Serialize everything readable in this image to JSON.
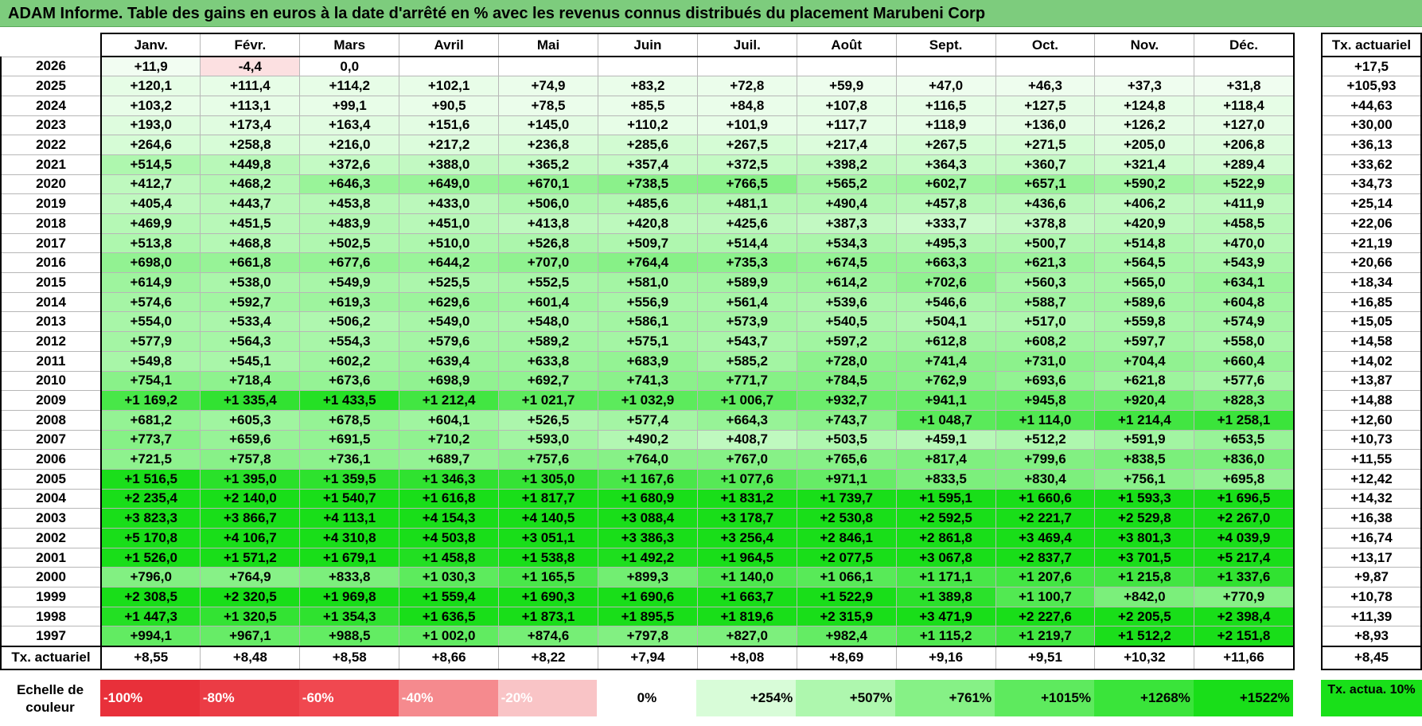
{
  "title": "ADAM Informe. Table des gains en euros à la date d'arrêté en % avec les revenus connus distribués du placement Marubeni Corp",
  "months": [
    "Janv.",
    "Févr.",
    "Mars",
    "Avril",
    "Mai",
    "Juin",
    "Juil.",
    "Août",
    "Sept.",
    "Oct.",
    "Nov.",
    "Déc."
  ],
  "side_header": "Tx. actuariel",
  "rows": [
    {
      "year": "2026",
      "values": [
        "+11,9",
        "-4,4",
        "0,0",
        "",
        "",
        "",
        "",
        "",
        "",
        "",
        "",
        ""
      ],
      "rate": "+17,5"
    },
    {
      "year": "2025",
      "values": [
        "+120,1",
        "+111,4",
        "+114,2",
        "+102,1",
        "+74,9",
        "+83,2",
        "+72,8",
        "+59,9",
        "+47,0",
        "+46,3",
        "+37,3",
        "+31,8"
      ],
      "rate": "+105,93"
    },
    {
      "year": "2024",
      "values": [
        "+103,2",
        "+113,1",
        "+99,1",
        "+90,5",
        "+78,5",
        "+85,5",
        "+84,8",
        "+107,8",
        "+116,5",
        "+127,5",
        "+124,8",
        "+118,4"
      ],
      "rate": "+44,63"
    },
    {
      "year": "2023",
      "values": [
        "+193,0",
        "+173,4",
        "+163,4",
        "+151,6",
        "+145,0",
        "+110,2",
        "+101,9",
        "+117,7",
        "+118,9",
        "+136,0",
        "+126,2",
        "+127,0"
      ],
      "rate": "+30,00"
    },
    {
      "year": "2022",
      "values": [
        "+264,6",
        "+258,8",
        "+216,0",
        "+217,2",
        "+236,8",
        "+285,6",
        "+267,5",
        "+217,4",
        "+267,5",
        "+271,5",
        "+205,0",
        "+206,8"
      ],
      "rate": "+36,13"
    },
    {
      "year": "2021",
      "values": [
        "+514,5",
        "+449,8",
        "+372,6",
        "+388,0",
        "+365,2",
        "+357,4",
        "+372,5",
        "+398,2",
        "+364,3",
        "+360,7",
        "+321,4",
        "+289,4"
      ],
      "rate": "+33,62"
    },
    {
      "year": "2020",
      "values": [
        "+412,7",
        "+468,2",
        "+646,3",
        "+649,0",
        "+670,1",
        "+738,5",
        "+766,5",
        "+565,2",
        "+602,7",
        "+657,1",
        "+590,2",
        "+522,9"
      ],
      "rate": "+34,73"
    },
    {
      "year": "2019",
      "values": [
        "+405,4",
        "+443,7",
        "+453,8",
        "+433,0",
        "+506,0",
        "+485,6",
        "+481,1",
        "+490,4",
        "+457,8",
        "+436,6",
        "+406,2",
        "+411,9"
      ],
      "rate": "+25,14"
    },
    {
      "year": "2018",
      "values": [
        "+469,9",
        "+451,5",
        "+483,9",
        "+451,0",
        "+413,8",
        "+420,8",
        "+425,6",
        "+387,3",
        "+333,7",
        "+378,8",
        "+420,9",
        "+458,5"
      ],
      "rate": "+22,06"
    },
    {
      "year": "2017",
      "values": [
        "+513,8",
        "+468,8",
        "+502,5",
        "+510,0",
        "+526,8",
        "+509,7",
        "+514,4",
        "+534,3",
        "+495,3",
        "+500,7",
        "+514,8",
        "+470,0"
      ],
      "rate": "+21,19"
    },
    {
      "year": "2016",
      "values": [
        "+698,0",
        "+661,8",
        "+677,6",
        "+644,2",
        "+707,0",
        "+764,4",
        "+735,3",
        "+674,5",
        "+663,3",
        "+621,3",
        "+564,5",
        "+543,9"
      ],
      "rate": "+20,66"
    },
    {
      "year": "2015",
      "values": [
        "+614,9",
        "+538,0",
        "+549,9",
        "+525,5",
        "+552,5",
        "+581,0",
        "+589,9",
        "+614,2",
        "+702,6",
        "+560,3",
        "+565,0",
        "+634,1"
      ],
      "rate": "+18,34"
    },
    {
      "year": "2014",
      "values": [
        "+574,6",
        "+592,7",
        "+619,3",
        "+629,6",
        "+601,4",
        "+556,9",
        "+561,4",
        "+539,6",
        "+546,6",
        "+588,7",
        "+589,6",
        "+604,8"
      ],
      "rate": "+16,85"
    },
    {
      "year": "2013",
      "values": [
        "+554,0",
        "+533,4",
        "+506,2",
        "+549,0",
        "+548,0",
        "+586,1",
        "+573,9",
        "+540,5",
        "+504,1",
        "+517,0",
        "+559,8",
        "+574,9"
      ],
      "rate": "+15,05"
    },
    {
      "year": "2012",
      "values": [
        "+577,9",
        "+564,3",
        "+554,3",
        "+579,6",
        "+589,2",
        "+575,1",
        "+543,7",
        "+597,2",
        "+612,8",
        "+608,2",
        "+597,7",
        "+558,0"
      ],
      "rate": "+14,58"
    },
    {
      "year": "2011",
      "values": [
        "+549,8",
        "+545,1",
        "+602,2",
        "+639,4",
        "+633,8",
        "+683,9",
        "+585,2",
        "+728,0",
        "+741,4",
        "+731,0",
        "+704,4",
        "+660,4"
      ],
      "rate": "+14,02"
    },
    {
      "year": "2010",
      "values": [
        "+754,1",
        "+718,4",
        "+673,6",
        "+698,9",
        "+692,7",
        "+741,3",
        "+771,7",
        "+784,5",
        "+762,9",
        "+693,6",
        "+621,8",
        "+577,6"
      ],
      "rate": "+13,87"
    },
    {
      "year": "2009",
      "values": [
        "+1 169,2",
        "+1 335,4",
        "+1 433,5",
        "+1 212,4",
        "+1 021,7",
        "+1 032,9",
        "+1 006,7",
        "+932,7",
        "+941,1",
        "+945,8",
        "+920,4",
        "+828,3"
      ],
      "rate": "+14,88"
    },
    {
      "year": "2008",
      "values": [
        "+681,2",
        "+605,3",
        "+678,5",
        "+604,1",
        "+526,5",
        "+577,4",
        "+664,3",
        "+743,7",
        "+1 048,7",
        "+1 114,0",
        "+1 214,4",
        "+1 258,1"
      ],
      "rate": "+12,60"
    },
    {
      "year": "2007",
      "values": [
        "+773,7",
        "+659,6",
        "+691,5",
        "+710,2",
        "+593,0",
        "+490,2",
        "+408,7",
        "+503,5",
        "+459,1",
        "+512,2",
        "+591,9",
        "+653,5"
      ],
      "rate": "+10,73"
    },
    {
      "year": "2006",
      "values": [
        "+721,5",
        "+757,8",
        "+736,1",
        "+689,7",
        "+757,6",
        "+764,0",
        "+767,0",
        "+765,6",
        "+817,4",
        "+799,6",
        "+838,5",
        "+836,0"
      ],
      "rate": "+11,55"
    },
    {
      "year": "2005",
      "values": [
        "+1 516,5",
        "+1 395,0",
        "+1 359,5",
        "+1 346,3",
        "+1 305,0",
        "+1 167,6",
        "+1 077,6",
        "+971,1",
        "+833,5",
        "+830,4",
        "+756,1",
        "+695,8"
      ],
      "rate": "+12,42"
    },
    {
      "year": "2004",
      "values": [
        "+2 235,4",
        "+2 140,0",
        "+1 540,7",
        "+1 616,8",
        "+1 817,7",
        "+1 680,9",
        "+1 831,2",
        "+1 739,7",
        "+1 595,1",
        "+1 660,6",
        "+1 593,3",
        "+1 696,5"
      ],
      "rate": "+14,32"
    },
    {
      "year": "2003",
      "values": [
        "+3 823,3",
        "+3 866,7",
        "+4 113,1",
        "+4 154,3",
        "+4 140,5",
        "+3 088,4",
        "+3 178,7",
        "+2 530,8",
        "+2 592,5",
        "+2 221,7",
        "+2 529,8",
        "+2 267,0"
      ],
      "rate": "+16,38"
    },
    {
      "year": "2002",
      "values": [
        "+5 170,8",
        "+4 106,7",
        "+4 310,8",
        "+4 503,8",
        "+3 051,1",
        "+3 386,3",
        "+3 256,4",
        "+2 846,1",
        "+2 861,8",
        "+3 469,4",
        "+3 801,3",
        "+4 039,9"
      ],
      "rate": "+16,74"
    },
    {
      "year": "2001",
      "values": [
        "+1 526,0",
        "+1 571,2",
        "+1 679,1",
        "+1 458,8",
        "+1 538,8",
        "+1 492,2",
        "+1 964,5",
        "+2 077,5",
        "+3 067,8",
        "+2 837,7",
        "+3 701,5",
        "+5 217,4"
      ],
      "rate": "+13,17"
    },
    {
      "year": "2000",
      "values": [
        "+796,0",
        "+764,9",
        "+833,8",
        "+1 030,3",
        "+1 165,5",
        "+899,3",
        "+1 140,0",
        "+1 066,1",
        "+1 171,1",
        "+1 207,6",
        "+1 215,8",
        "+1 337,6"
      ],
      "rate": "+9,87"
    },
    {
      "year": "1999",
      "values": [
        "+2 308,5",
        "+2 320,5",
        "+1 969,8",
        "+1 559,4",
        "+1 690,3",
        "+1 690,6",
        "+1 663,7",
        "+1 522,9",
        "+1 389,8",
        "+1 100,7",
        "+842,0",
        "+770,9"
      ],
      "rate": "+10,78"
    },
    {
      "year": "1998",
      "values": [
        "+1 447,3",
        "+1 320,5",
        "+1 354,3",
        "+1 636,5",
        "+1 873,1",
        "+1 895,5",
        "+1 819,6",
        "+2 315,9",
        "+3 471,9",
        "+2 227,6",
        "+2 205,5",
        "+2 398,4"
      ],
      "rate": "+11,39"
    },
    {
      "year": "1997",
      "values": [
        "+994,1",
        "+967,1",
        "+988,5",
        "+1 002,0",
        "+874,6",
        "+797,8",
        "+827,0",
        "+982,4",
        "+1 115,2",
        "+1 219,7",
        "+1 512,2",
        "+2 151,8"
      ],
      "rate": "+8,93"
    }
  ],
  "footer": {
    "label": "Tx. actuariel",
    "values": [
      "+8,55",
      "+8,48",
      "+8,58",
      "+8,66",
      "+8,22",
      "+7,94",
      "+8,08",
      "+8,69",
      "+9,16",
      "+9,51",
      "+10,32",
      "+11,66"
    ],
    "rate": "+8,45"
  },
  "scale": {
    "label": "Echelle de couleur",
    "steps": [
      {
        "text": "-100%",
        "color": "#e8303a"
      },
      {
        "text": "-80%",
        "color": "#eb3c45"
      },
      {
        "text": "-60%",
        "color": "#f04850"
      },
      {
        "text": "-40%",
        "color": "#f58a8e"
      },
      {
        "text": "-20%",
        "color": "#f9c4c6"
      },
      {
        "text": "0%",
        "color": "#ffffff"
      },
      {
        "text": "+254%",
        "color": "#d8fcd8"
      },
      {
        "text": "+507%",
        "color": "#aef7ae"
      },
      {
        "text": "+761%",
        "color": "#86f186"
      },
      {
        "text": "+1015%",
        "color": "#5eea5e"
      },
      {
        "text": "+1268%",
        "color": "#3ae43a"
      },
      {
        "text": "+1522%",
        "color": "#19de19"
      }
    ],
    "tx_label": "Tx. actua. 10%"
  }
}
